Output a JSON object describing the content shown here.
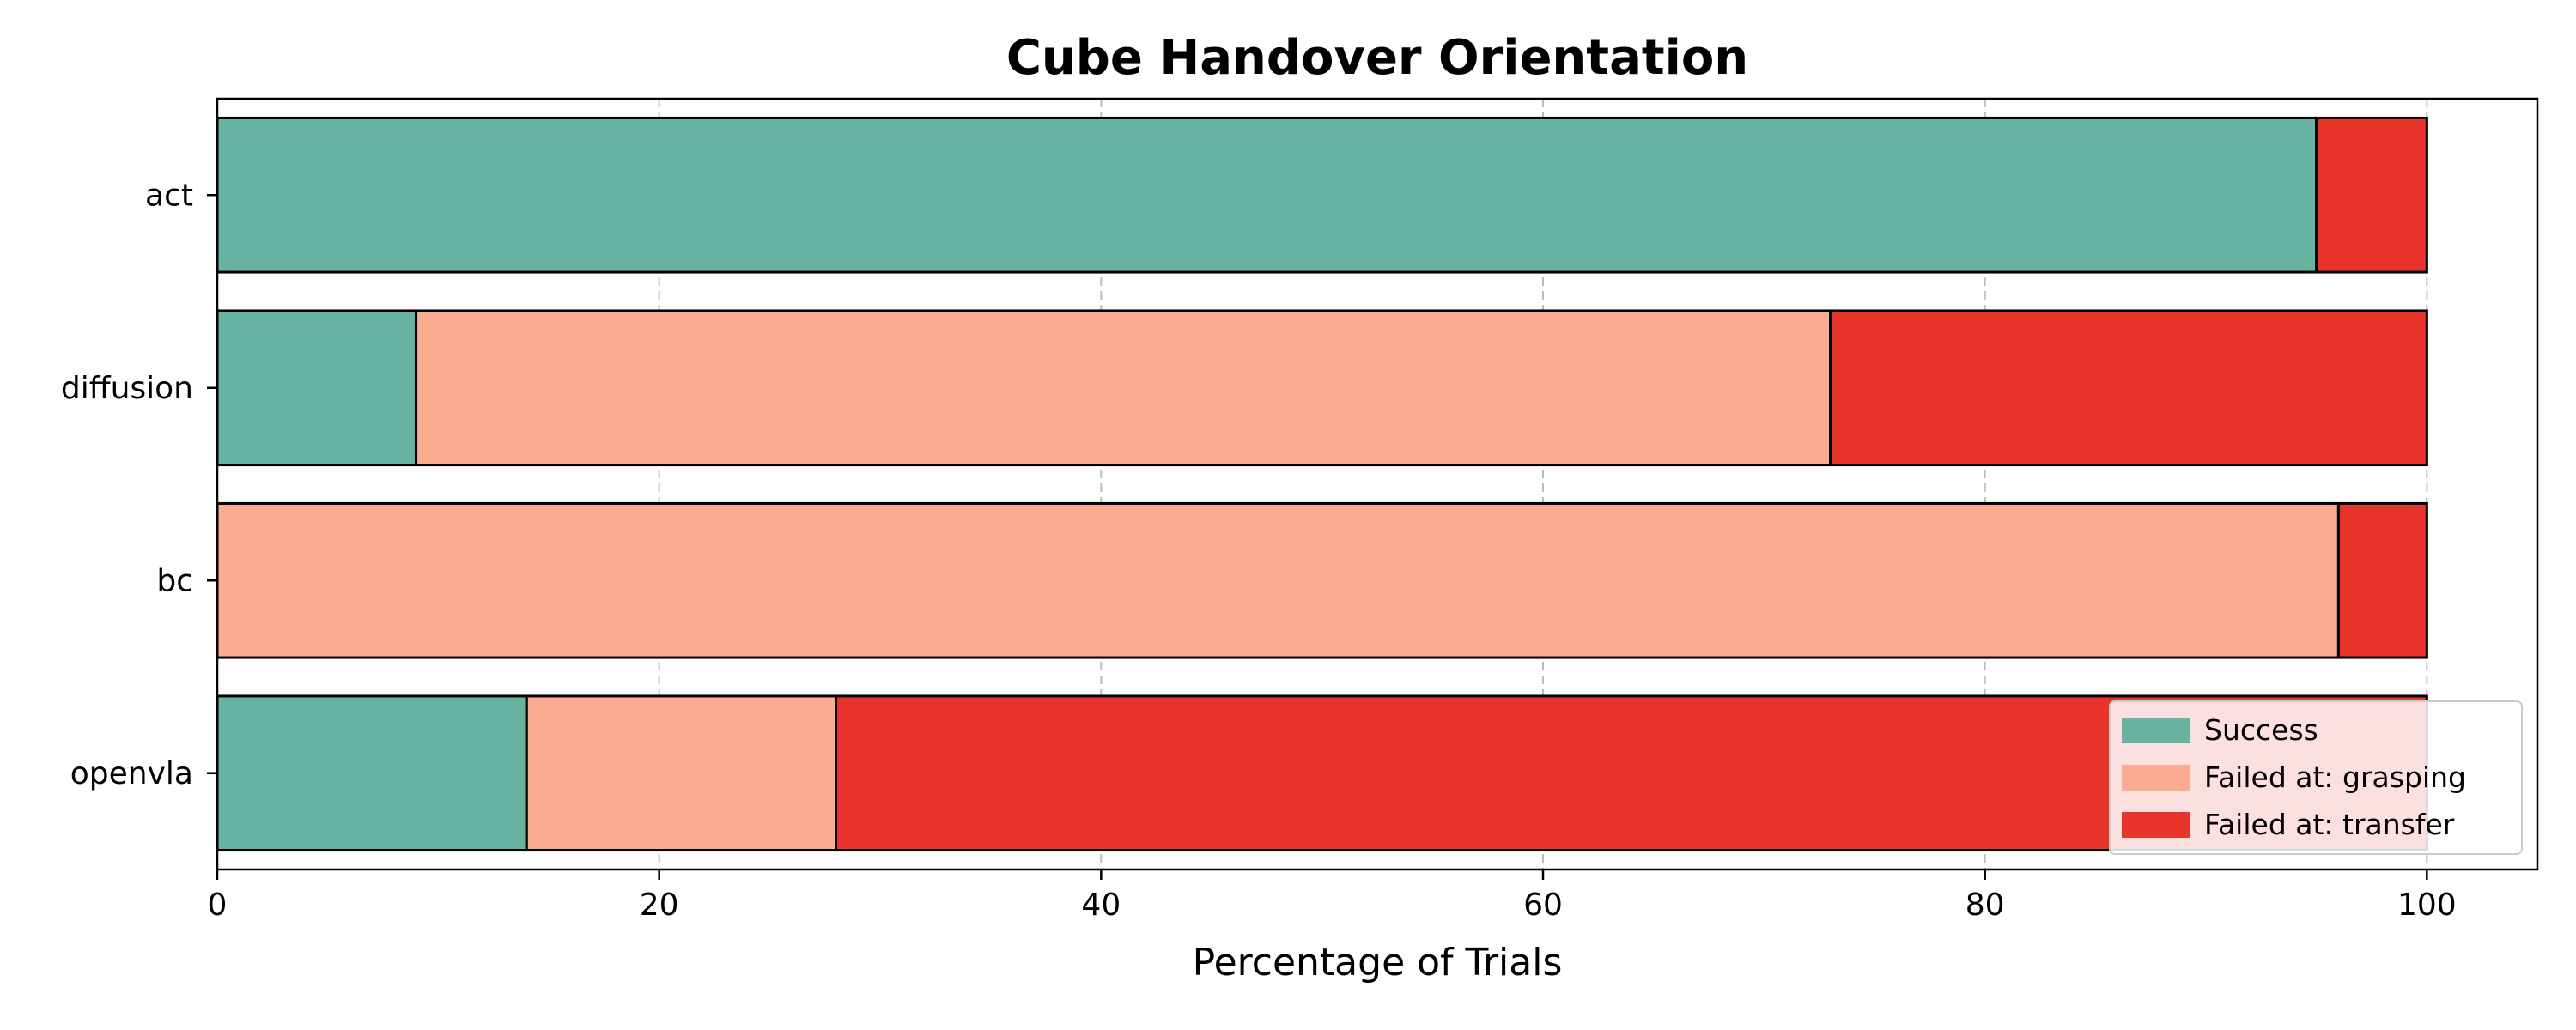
{
  "chart_data": {
    "type": "bar",
    "orientation": "horizontal",
    "stacked": true,
    "title": "Cube Handover Orientation",
    "xlabel": "Percentage of Trials",
    "ylabel": "",
    "xlim": [
      0,
      105
    ],
    "xticks": [
      0,
      20,
      40,
      60,
      80,
      100
    ],
    "categories": [
      "act",
      "diffusion",
      "bc",
      "openvla"
    ],
    "series": [
      {
        "name": "Success",
        "color": "#67b2a0",
        "values": [
          95,
          9,
          0,
          14
        ]
      },
      {
        "name": "Failed at: grasping",
        "color": "#fbab8f",
        "values": [
          0,
          64,
          96,
          14
        ]
      },
      {
        "name": "Failed at: transfer",
        "color": "#e8342a",
        "values": [
          5,
          27,
          4,
          72
        ]
      }
    ],
    "grid": "x-dashed",
    "legend_position": "lower-right"
  }
}
